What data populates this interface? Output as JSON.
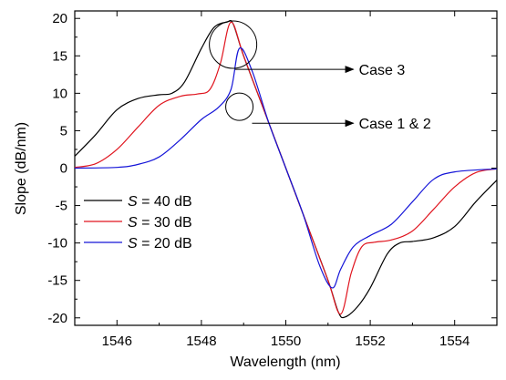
{
  "chart_data": {
    "type": "line",
    "xlabel": "Wavelength (nm)",
    "ylabel": "Slope (dB/nm)",
    "xlim": [
      1545,
      1555
    ],
    "ylim": [
      -21,
      21
    ],
    "xticks": [
      1546,
      1548,
      1550,
      1552,
      1554
    ],
    "yticks": [
      -20,
      -15,
      -10,
      -5,
      0,
      5,
      10,
      15,
      20
    ],
    "legend_position": "center-left",
    "series": [
      {
        "name_italic": "S",
        "name_rest": " = 40 dB",
        "color": "#000000",
        "x": [
          1545,
          1545.5,
          1546,
          1546.5,
          1547,
          1547.3,
          1547.6,
          1548,
          1548.3,
          1548.6,
          1548.75,
          1549,
          1549.5,
          1550,
          1550.5,
          1551,
          1551.25,
          1551.4,
          1551.7,
          1552,
          1552.4,
          1552.7,
          1553,
          1553.5,
          1554,
          1554.5,
          1555
        ],
        "y": [
          1.6,
          4.5,
          7.8,
          9.3,
          9.8,
          10,
          11.5,
          16,
          18.8,
          19.5,
          19.3,
          15,
          7.5,
          0,
          -7.5,
          -15,
          -19.3,
          -19.9,
          -18.5,
          -16,
          -11.5,
          -10,
          -9.8,
          -9.3,
          -7.8,
          -4.5,
          -1.6
        ]
      },
      {
        "name_italic": "S",
        "name_rest": " = 30 dB",
        "color": "#e0141e",
        "x": [
          1545,
          1545.5,
          1546,
          1546.5,
          1547,
          1547.5,
          1547.9,
          1548.2,
          1548.45,
          1548.7,
          1549,
          1549.5,
          1550,
          1550.5,
          1551,
          1551.3,
          1551.55,
          1551.8,
          1552.1,
          1552.5,
          1553,
          1553.5,
          1554,
          1554.5,
          1555
        ],
        "y": [
          0.1,
          0.6,
          2.5,
          5.5,
          8.4,
          9.6,
          9.9,
          10.5,
          14,
          19.5,
          15,
          7.5,
          0,
          -7.5,
          -15,
          -19.5,
          -14,
          -10.5,
          -9.9,
          -9.6,
          -8.4,
          -5.5,
          -2.5,
          -0.6,
          -0.1
        ]
      },
      {
        "name_italic": "S",
        "name_rest": " = 20 dB",
        "color": "#1414d8",
        "x": [
          1545,
          1546,
          1546.5,
          1547,
          1547.5,
          1548,
          1548.4,
          1548.7,
          1548.9,
          1549.2,
          1549.6,
          1550,
          1550.4,
          1550.8,
          1551.1,
          1551.3,
          1551.6,
          1552,
          1552.5,
          1553,
          1553.5,
          1554,
          1555
        ],
        "y": [
          0,
          0.1,
          0.5,
          1.5,
          3.8,
          6.5,
          8.1,
          10.5,
          16,
          13,
          6,
          0,
          -6,
          -13,
          -16,
          -13.5,
          -10.5,
          -9,
          -7.5,
          -4.5,
          -1.5,
          -0.5,
          -0.1
        ]
      }
    ],
    "annotations": [
      {
        "text": "Case 3",
        "circle": [
          1548.75,
          16.5
        ],
        "arrow_from": [
          1548.8,
          13.2
        ],
        "arrow_to": [
          1551.6,
          13.2
        ]
      },
      {
        "text": "Case 1 & 2",
        "circle": [
          1548.9,
          8.2
        ],
        "arrow_from": [
          1549.2,
          6.0
        ],
        "arrow_to": [
          1551.6,
          6.0
        ]
      }
    ]
  }
}
